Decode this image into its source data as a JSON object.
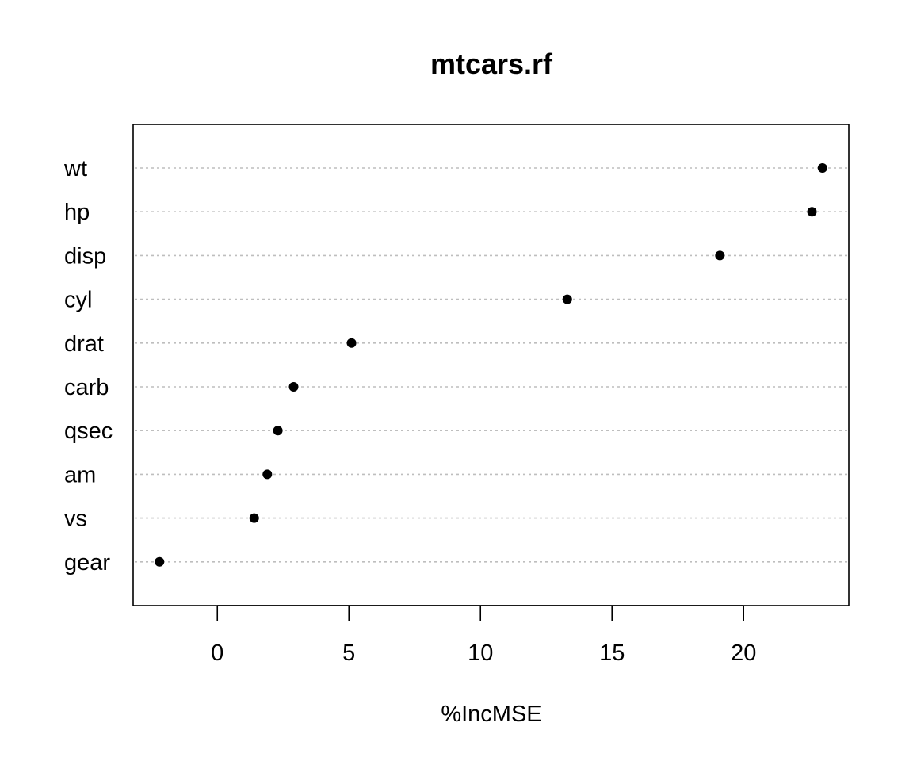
{
  "chart_data": {
    "type": "scatter",
    "title": "mtcars.rf",
    "xlabel": "%IncMSE",
    "ylabel": "",
    "xlim": [
      -3.2,
      24.0
    ],
    "x_ticks": [
      0,
      5,
      10,
      15,
      20
    ],
    "x_tick_labels": [
      "0",
      "5",
      "10",
      "15",
      "20"
    ],
    "grid": "dotted horizontal guide lines",
    "categories": [
      "wt",
      "hp",
      "disp",
      "cyl",
      "drat",
      "carb",
      "qsec",
      "am",
      "vs",
      "gear"
    ],
    "values": [
      23.0,
      22.6,
      19.1,
      13.3,
      5.1,
      2.9,
      2.3,
      1.9,
      1.4,
      -2.2
    ],
    "colors": {
      "point": "#000000",
      "guide": "#bebebe",
      "axis": "#000000"
    }
  }
}
